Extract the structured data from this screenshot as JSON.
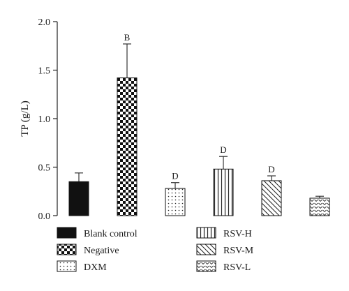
{
  "chart_data": {
    "type": "bar",
    "title": "",
    "xlabel": "",
    "ylabel": "TP (g/L)",
    "ylim": [
      0,
      2.0
    ],
    "yticks": [
      "0.0",
      "0.5",
      "1.0",
      "1.5",
      "2.0"
    ],
    "grid": false,
    "legend_position": "bottom",
    "categories": [
      "Blank control",
      "Negative",
      "DXM",
      "RSV-H",
      "RSV-M",
      "RSV-L"
    ],
    "values": [
      0.35,
      1.42,
      0.28,
      0.48,
      0.36,
      0.18
    ],
    "errors": [
      0.09,
      0.35,
      0.06,
      0.13,
      0.05,
      0.02
    ],
    "annotations": [
      "",
      "B",
      "D",
      "D",
      "D",
      ""
    ],
    "patterns": [
      "solid",
      "checkerboard",
      "dots",
      "vertical-lines",
      "diagonal-lines",
      "chevrons"
    ]
  }
}
